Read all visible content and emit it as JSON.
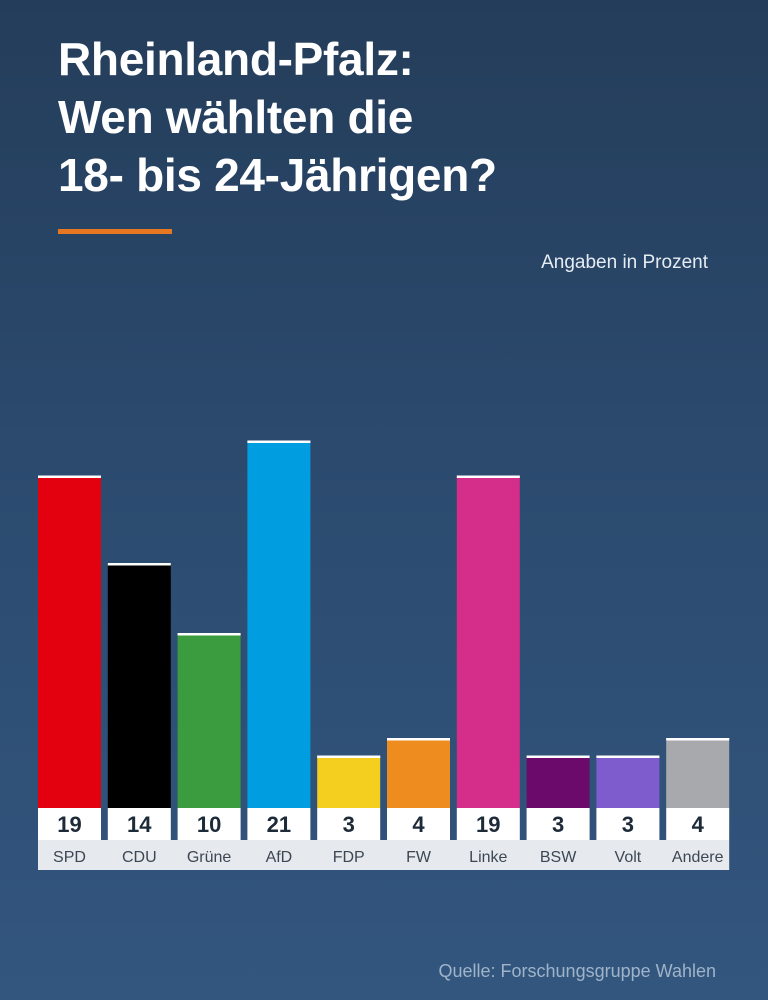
{
  "header": {
    "title_lines": [
      "Rheinland-Pfalz:",
      "Wen wählten die",
      "18- bis 24-Jährigen?"
    ],
    "unit_note": "Angaben in Prozent"
  },
  "footer": {
    "source": "Quelle: Forschungsgruppe Wahlen"
  },
  "colors": {
    "accent": "#e87722",
    "label_box": "#ffffff",
    "label_strip": "#e6e9ed"
  },
  "chart_data": {
    "type": "bar",
    "title": "Rheinland-Pfalz: Wen wählten die 18- bis 24-Jährigen?",
    "xlabel": "",
    "ylabel": "Angaben in Prozent",
    "ylim": [
      0,
      21
    ],
    "grid": false,
    "categories": [
      "SPD",
      "CDU",
      "Grüne",
      "AfD",
      "FDP",
      "FW",
      "Linke",
      "BSW",
      "Volt",
      "Andere"
    ],
    "values": [
      19,
      14,
      10,
      21,
      3,
      4,
      19,
      3,
      3,
      4
    ],
    "colors": [
      "#e3000f",
      "#000000",
      "#3a9b3f",
      "#009ee0",
      "#f5cf1f",
      "#ee8c1f",
      "#d42e8a",
      "#6b0a6b",
      "#7f5ccd",
      "#a7a9ad"
    ]
  }
}
